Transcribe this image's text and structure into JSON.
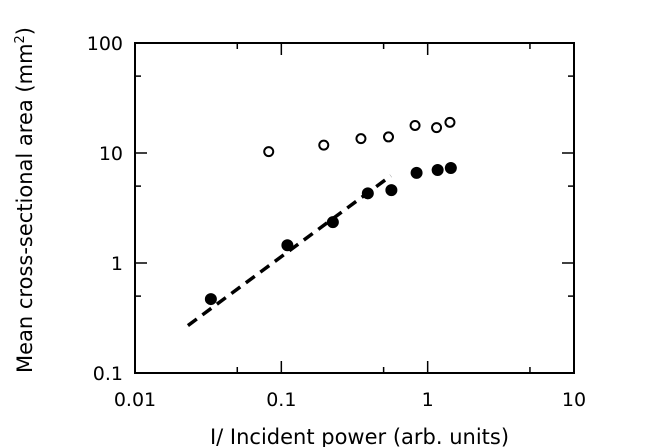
{
  "chart_data": {
    "type": "scatter",
    "xscale": "log",
    "yscale": "log",
    "xlim": [
      0.01,
      10
    ],
    "ylim": [
      0.1,
      100
    ],
    "xlabel": "I/ Incident power (arb. units)",
    "ylabel": "Mean cross-sectional area (mm",
    "ylabel_sup": "2",
    "ylabel_close": ")",
    "x_ticks": [
      {
        "value": 0.01,
        "label": "0.01"
      },
      {
        "value": 0.1,
        "label": "0.1"
      },
      {
        "value": 1,
        "label": "1"
      },
      {
        "value": 10,
        "label": "10"
      }
    ],
    "y_ticks": [
      {
        "value": 0.1,
        "label": "0.1"
      },
      {
        "value": 1,
        "label": "1"
      },
      {
        "value": 10,
        "label": "10"
      },
      {
        "value": 100,
        "label": "100"
      }
    ],
    "grid": false,
    "legend": "none",
    "series": [
      {
        "marker": "open-circle",
        "color": "#000000",
        "x": [
          0.082,
          0.195,
          0.35,
          0.54,
          0.82,
          1.15,
          1.42
        ],
        "y": [
          10.3,
          11.8,
          13.5,
          14.0,
          17.8,
          17.0,
          19.0
        ]
      },
      {
        "marker": "filled-circle",
        "color": "#000000",
        "x": [
          0.033,
          0.11,
          0.225,
          0.39,
          0.565,
          0.84,
          1.17,
          1.44
        ],
        "y": [
          0.47,
          1.45,
          2.35,
          4.3,
          4.6,
          6.6,
          7.0,
          7.3
        ]
      },
      {
        "marker": "dashed-line",
        "color": "#000000",
        "x": [
          0.023,
          0.56
        ],
        "y": [
          0.27,
          6.2
        ]
      }
    ]
  }
}
